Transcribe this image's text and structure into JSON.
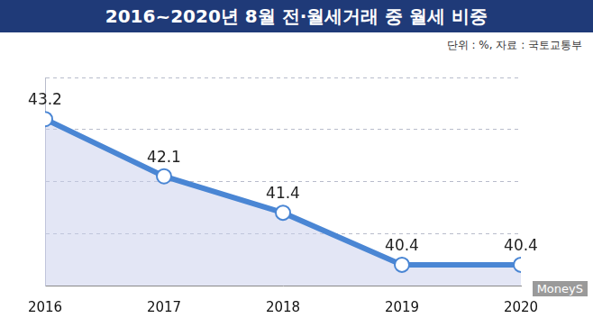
{
  "chart_data": {
    "type": "line",
    "title": "2016~2020년 8월 전·월세거래 중 월세 비중",
    "annotations": [
      "단위 : %, 자료 : 국토교통부",
      "MoneyS"
    ],
    "categories": [
      "2016",
      "2017",
      "2018",
      "2019",
      "2020"
    ],
    "values": [
      43.2,
      42.1,
      41.4,
      40.4,
      40.4
    ],
    "color": "#4a86d4",
    "marker": "circle",
    "ylim": [
      40,
      44
    ],
    "yticks": [
      40,
      41,
      42,
      43,
      44
    ],
    "grid": true,
    "data_labels": true,
    "tick_labels": "x"
  }
}
